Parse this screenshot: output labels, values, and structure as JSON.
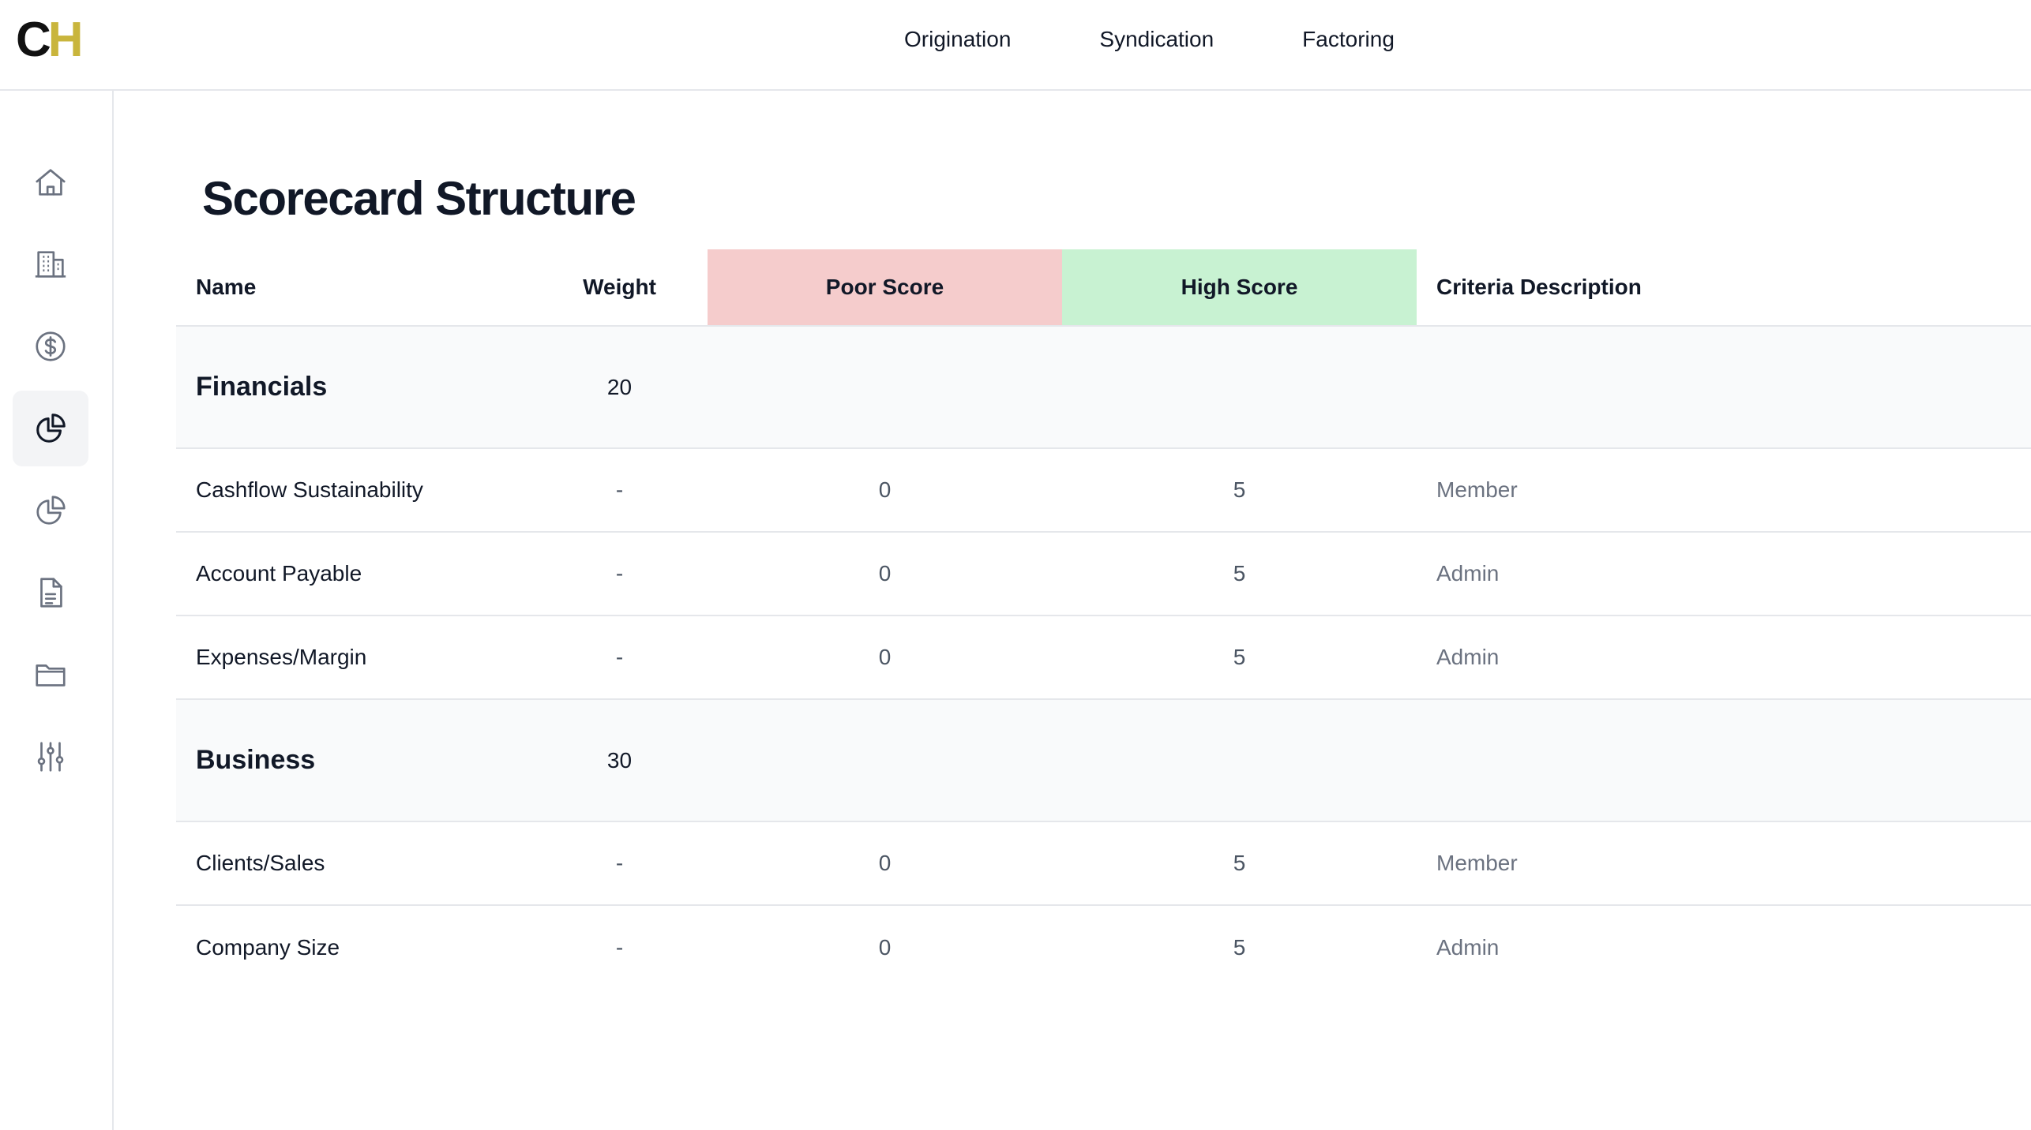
{
  "brand": {
    "logo_c": "C",
    "logo_h": "H"
  },
  "topnav": [
    {
      "label": "Origination"
    },
    {
      "label": "Syndication"
    },
    {
      "label": "Factoring"
    }
  ],
  "sidebar": {
    "items": [
      {
        "icon": "home-icon",
        "active": false
      },
      {
        "icon": "building-icon",
        "active": false
      },
      {
        "icon": "dollar-icon",
        "active": false
      },
      {
        "icon": "pie-chart-icon",
        "active": true
      },
      {
        "icon": "pie-chart-outline-icon",
        "active": false
      },
      {
        "icon": "document-icon",
        "active": false
      },
      {
        "icon": "folder-icon",
        "active": false
      },
      {
        "icon": "sliders-icon",
        "active": false
      }
    ]
  },
  "page": {
    "title": "Scorecard Structure"
  },
  "table": {
    "headers": {
      "name": "Name",
      "weight": "Weight",
      "poor": "Poor Score",
      "high": "High Score",
      "criteria": "Criteria Description"
    },
    "colors": {
      "poor_bg": "#f5cccc",
      "high_bg": "#c8f2d2"
    },
    "rows": [
      {
        "type": "group",
        "name": "Financials",
        "weight": "20"
      },
      {
        "type": "item",
        "name": "Cashflow Sustainability",
        "weight": "-",
        "poor": "0",
        "high": "5",
        "criteria": "Member"
      },
      {
        "type": "item",
        "name": "Account Payable",
        "weight": "-",
        "poor": "0",
        "high": "5",
        "criteria": "Admin"
      },
      {
        "type": "item",
        "name": "Expenses/Margin",
        "weight": "-",
        "poor": "0",
        "high": "5",
        "criteria": "Admin"
      },
      {
        "type": "group",
        "name": "Business",
        "weight": "30"
      },
      {
        "type": "item",
        "name": "Clients/Sales",
        "weight": "-",
        "poor": "0",
        "high": "5",
        "criteria": "Member"
      },
      {
        "type": "item",
        "name": "Company Size",
        "weight": "-",
        "poor": "0",
        "high": "5",
        "criteria": "Admin"
      }
    ]
  }
}
